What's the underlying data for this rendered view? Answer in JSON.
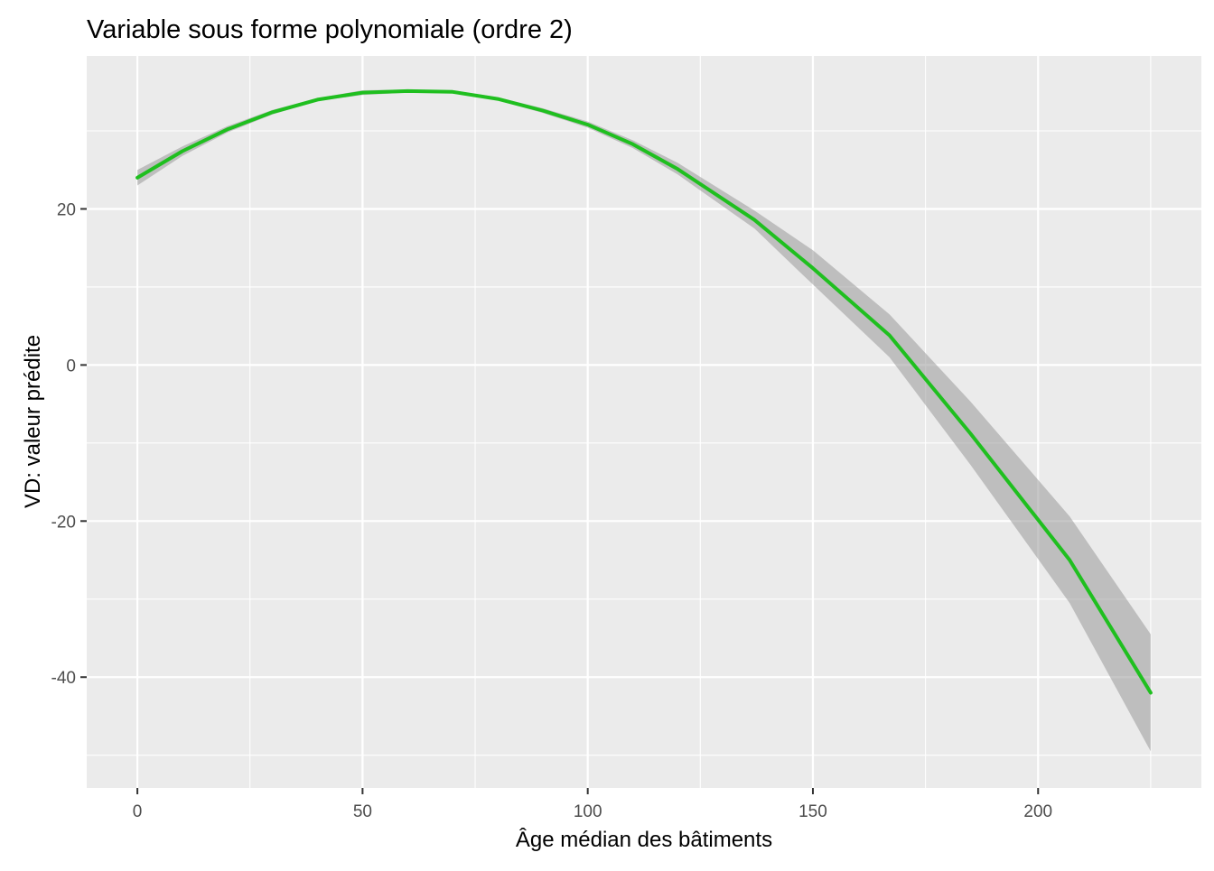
{
  "chart_data": {
    "type": "line",
    "title": "Variable sous forme polynomiale (ordre 2)",
    "xlabel": "Âge médian des bâtiments",
    "ylabel": "VD: valeur prédite",
    "xlim": [
      -11.25,
      236.25
    ],
    "ylim": [
      -54.2,
      39.6
    ],
    "x_ticks": [
      0,
      50,
      100,
      150,
      200
    ],
    "y_ticks": [
      -40,
      -20,
      0,
      20
    ],
    "x_tick_labels": [
      "0",
      "50",
      "100",
      "150",
      "200"
    ],
    "y_tick_labels": [
      "-40",
      "-20",
      "0",
      "20"
    ],
    "grid": true,
    "legend": "none",
    "colors": {
      "panel_background": "#ebebeb",
      "grid": "#ffffff",
      "line": "#1fbf1f",
      "ribbon": "#999999"
    },
    "series": [
      {
        "x": [
          0,
          10,
          20,
          30,
          40,
          50,
          60,
          70,
          80,
          90,
          100,
          110,
          120,
          137,
          150,
          167,
          185,
          207,
          225
        ],
        "y": [
          24.0,
          27.4,
          30.2,
          32.4,
          34.0,
          34.9,
          35.1,
          35.0,
          34.1,
          32.6,
          30.8,
          28.3,
          25.1,
          18.6,
          12.4,
          3.8,
          -8.8,
          -25.0,
          -42.0
        ],
        "lower": [
          23.0,
          26.8,
          29.8,
          32.1,
          33.8,
          34.6,
          34.9,
          34.8,
          33.9,
          32.3,
          30.4,
          27.8,
          24.4,
          17.5,
          10.3,
          1.0,
          -12.8,
          -30.5,
          -49.5
        ],
        "upper": [
          25.0,
          28.0,
          30.6,
          32.7,
          34.2,
          35.2,
          35.3,
          35.2,
          34.3,
          32.9,
          31.2,
          28.8,
          25.9,
          19.8,
          14.7,
          6.5,
          -4.7,
          -19.4,
          -34.5
        ]
      }
    ]
  }
}
